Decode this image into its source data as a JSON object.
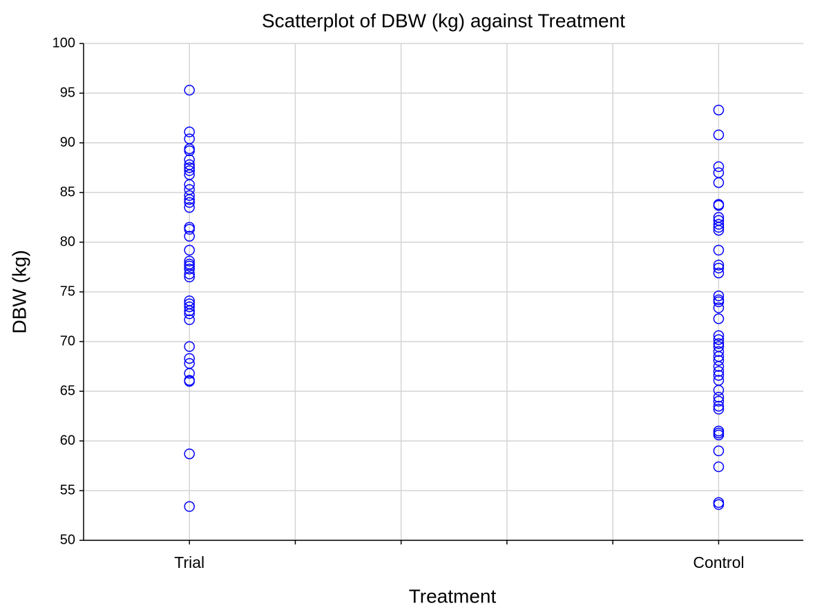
{
  "chart_data": {
    "type": "scatter",
    "title": "Scatterplot of DBW (kg) against Treatment",
    "x_label": "Treatment",
    "y_label": "DBW (kg)",
    "categories": [
      "Trial",
      null,
      null,
      null,
      null,
      "Control"
    ],
    "color": "#0000ff",
    "values": [
      [
        95.3,
        91.1,
        90.4,
        89.4,
        89.2,
        88.3,
        87.8,
        87.5,
        87.2,
        86.8,
        85.8,
        85.3,
        84.7,
        84.3,
        84.0,
        83.5,
        81.5,
        81.3,
        80.6,
        79.2,
        78.1,
        77.8,
        77.6,
        77.3,
        76.8,
        76.5,
        74.1,
        73.8,
        73.5,
        73.1,
        72.8,
        72.2,
        69.5,
        68.3,
        67.8,
        66.8,
        66.1,
        66.0,
        58.7,
        53.4
      ],
      [],
      [],
      [],
      [],
      [
        93.3,
        90.8,
        87.6,
        87.0,
        86.0,
        83.8,
        83.7,
        82.5,
        82.2,
        81.8,
        81.5,
        81.2,
        79.2,
        77.7,
        77.4,
        76.9,
        74.6,
        74.2,
        74.0,
        73.4,
        72.3,
        70.6,
        70.2,
        69.8,
        69.5,
        69.0,
        68.5,
        68.1,
        67.5,
        67.0,
        66.6,
        66.1,
        65.1,
        64.4,
        64.0,
        63.5,
        63.2,
        61.0,
        60.8,
        60.6,
        59.0,
        57.4,
        53.8,
        53.6
      ]
    ],
    "ylim": [
      50,
      100
    ],
    "yticks": [
      50,
      55,
      60,
      65,
      70,
      75,
      80,
      85,
      90,
      95,
      100
    ],
    "grid": true
  }
}
